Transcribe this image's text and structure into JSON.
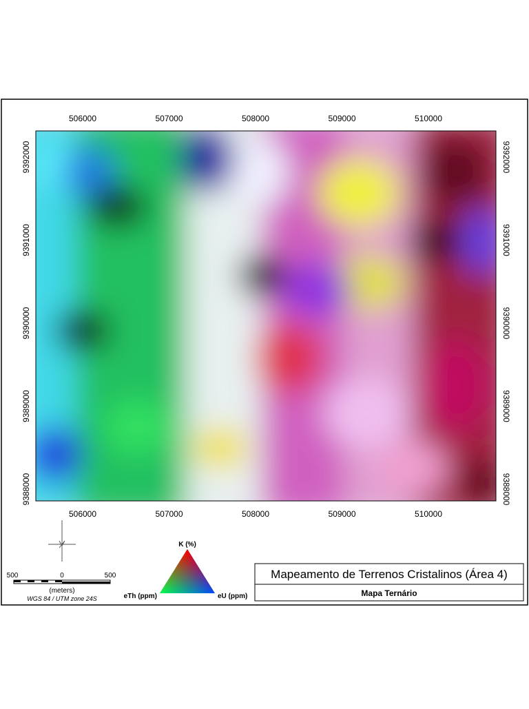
{
  "map": {
    "x_ticks": [
      "506000",
      "507000",
      "508000",
      "509000",
      "510000"
    ],
    "y_ticks": [
      "9392000",
      "9391000",
      "9390000",
      "9389000",
      "9388000"
    ]
  },
  "scale_bar": {
    "left_label": "500",
    "center_label": "0",
    "right_label": "500",
    "unit": "(meters)",
    "projection": "WGS 84 / UTM zone 24S"
  },
  "legend": {
    "top": "K (%)",
    "left": "eTh (ppm)",
    "right": "eU (ppm)"
  },
  "title_block": {
    "title": "Mapeamento de Terrenos Cristalinos (Área 4)",
    "subtitle": "Mapa Ternário"
  }
}
